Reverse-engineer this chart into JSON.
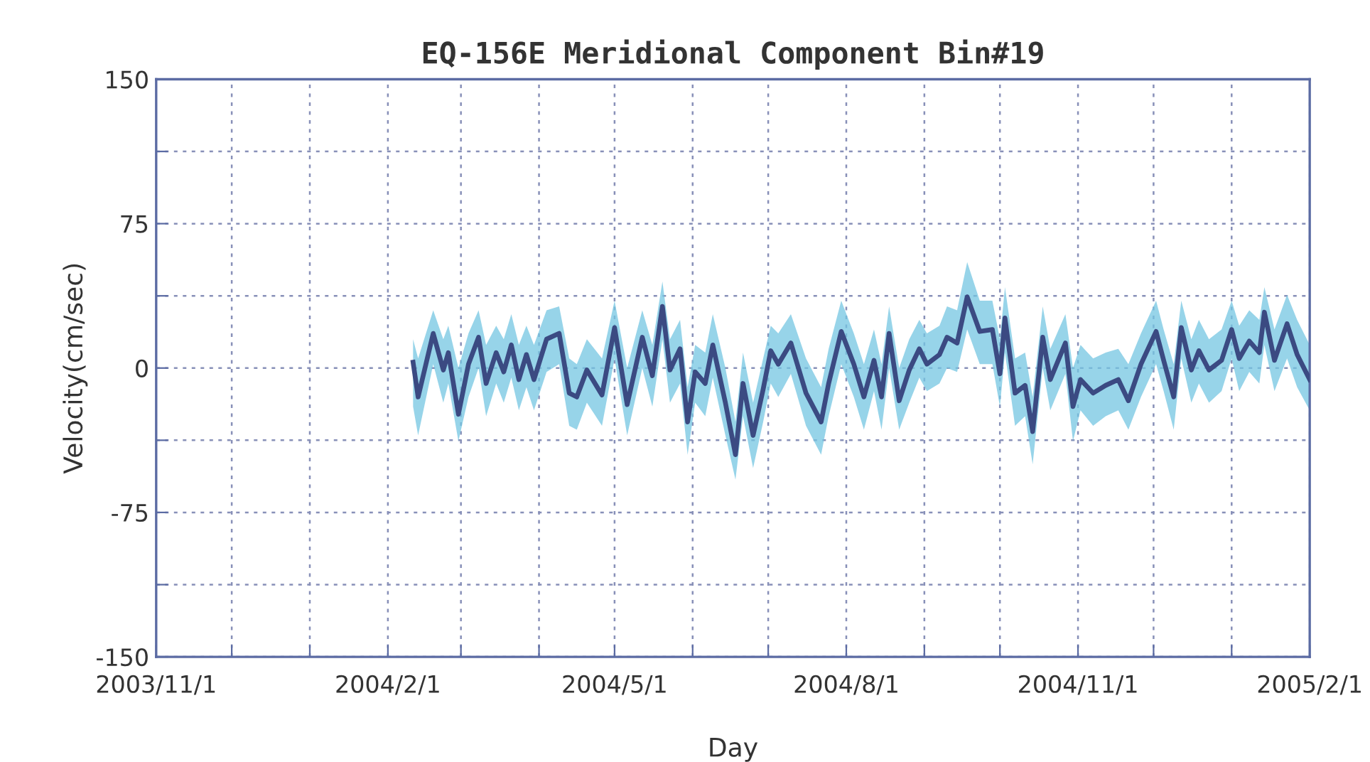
{
  "chart_data": {
    "type": "line",
    "title": "EQ-156E Meridional Component Bin#19",
    "xlabel": "Day",
    "ylabel": "Velocity(cm/sec)",
    "x": [
      "2004-02-11",
      "2004-02-13",
      "2004-02-19",
      "2004-02-23",
      "2004-02-25",
      "2004-02-29",
      "2004-03-04",
      "2004-03-08",
      "2004-03-11",
      "2004-03-15",
      "2004-03-18",
      "2004-03-21",
      "2004-03-24",
      "2004-03-27",
      "2004-03-30",
      "2004-04-04",
      "2004-04-09",
      "2004-04-13",
      "2004-04-16",
      "2004-04-20",
      "2004-04-26",
      "2004-05-01",
      "2004-05-06",
      "2004-05-12",
      "2004-05-16",
      "2004-05-20",
      "2004-05-23",
      "2004-05-27",
      "2004-05-30",
      "2004-06-02",
      "2004-06-06",
      "2004-06-09",
      "2004-06-14",
      "2004-06-18",
      "2004-06-21",
      "2004-06-25",
      "2004-06-29",
      "2004-07-02",
      "2004-07-05",
      "2004-07-10",
      "2004-07-16",
      "2004-07-22",
      "2004-07-25",
      "2004-07-30",
      "2004-08-04",
      "2004-08-08",
      "2004-08-12",
      "2004-08-15",
      "2004-08-18",
      "2004-08-22",
      "2004-08-26",
      "2004-08-30",
      "2004-09-02",
      "2004-09-07",
      "2004-09-10",
      "2004-09-14",
      "2004-09-18",
      "2004-09-23",
      "2004-09-28",
      "2004-10-01",
      "2004-10-03",
      "2004-10-07",
      "2004-10-11",
      "2004-10-14",
      "2004-10-18",
      "2004-10-21",
      "2004-10-27",
      "2004-10-30",
      "2004-11-02",
      "2004-11-07",
      "2004-11-12",
      "2004-11-17",
      "2004-11-21",
      "2004-11-26",
      "2004-12-02",
      "2004-12-05",
      "2004-12-09",
      "2004-12-12",
      "2004-12-16",
      "2004-12-19",
      "2004-12-23",
      "2004-12-28",
      "2005-01-01",
      "2005-01-04",
      "2005-01-08",
      "2005-01-12",
      "2005-01-14",
      "2005-01-18",
      "2005-01-23",
      "2005-01-27",
      "2005-02-01"
    ],
    "series": [
      {
        "color": "#3b4a82",
        "values": [
          3,
          -15,
          18,
          -1,
          8,
          -24,
          2,
          16,
          -8,
          8,
          -2,
          12,
          -6,
          7,
          -6,
          15,
          18,
          -13,
          -15,
          -1,
          -14,
          21,
          -19,
          16,
          -4,
          32,
          -1,
          10,
          -28,
          -2,
          -8,
          12,
          -18,
          -45,
          -8,
          -35,
          -11,
          9,
          2,
          13,
          -13,
          -28,
          -8,
          19,
          2,
          -15,
          4,
          -15,
          18,
          -17,
          -1,
          10,
          2,
          7,
          16,
          13,
          37,
          19,
          20,
          -3,
          26,
          -13,
          -9,
          -33,
          16,
          -6,
          13,
          -20,
          -6,
          -13,
          -9,
          -6,
          -17,
          2,
          19,
          4,
          -15,
          21,
          -1,
          9,
          -1,
          4,
          20,
          5,
          14,
          8,
          29,
          4,
          23,
          7,
          -6
        ],
        "upper": [
          15,
          5,
          30,
          15,
          22,
          0,
          18,
          30,
          12,
          22,
          15,
          28,
          12,
          22,
          12,
          30,
          32,
          5,
          2,
          15,
          5,
          35,
          0,
          30,
          12,
          45,
          15,
          25,
          -10,
          12,
          8,
          28,
          0,
          -28,
          8,
          -18,
          5,
          22,
          18,
          28,
          5,
          -10,
          10,
          35,
          18,
          2,
          20,
          2,
          32,
          0,
          15,
          25,
          18,
          22,
          32,
          30,
          55,
          35,
          35,
          15,
          42,
          5,
          8,
          -15,
          32,
          10,
          28,
          0,
          12,
          5,
          8,
          10,
          2,
          18,
          35,
          20,
          2,
          35,
          15,
          25,
          15,
          20,
          35,
          22,
          30,
          25,
          42,
          20,
          38,
          25,
          12
        ],
        "lower": [
          -20,
          -35,
          2,
          -18,
          -8,
          -38,
          -15,
          0,
          -25,
          -8,
          -18,
          -5,
          -22,
          -10,
          -22,
          -2,
          2,
          -30,
          -32,
          -18,
          -30,
          5,
          -35,
          0,
          -20,
          15,
          -18,
          -8,
          -45,
          -18,
          -25,
          -5,
          -35,
          -58,
          -25,
          -52,
          -28,
          -8,
          -15,
          -3,
          -30,
          -45,
          -25,
          2,
          -15,
          -32,
          -12,
          -32,
          0,
          -32,
          -18,
          -5,
          -12,
          -8,
          0,
          -2,
          20,
          2,
          2,
          -20,
          8,
          -30,
          -25,
          -50,
          0,
          -22,
          -3,
          -38,
          -22,
          -30,
          -25,
          -22,
          -32,
          -15,
          2,
          -12,
          -32,
          5,
          -18,
          -8,
          -18,
          -12,
          5,
          -12,
          -2,
          -8,
          12,
          -12,
          5,
          -10,
          -22
        ]
      }
    ],
    "xlim": [
      "2003-11-01",
      "2005-02-01"
    ],
    "xticks": [
      {
        "value": "2003-11-01",
        "label": "2003/11/1"
      },
      {
        "value": "2003-12-01",
        "label": null
      },
      {
        "value": "2004-01-01",
        "label": null
      },
      {
        "value": "2004-02-01",
        "label": "2004/2/1"
      },
      {
        "value": "2004-03-01",
        "label": null
      },
      {
        "value": "2004-04-01",
        "label": null
      },
      {
        "value": "2004-05-01",
        "label": "2004/5/1"
      },
      {
        "value": "2004-06-01",
        "label": null
      },
      {
        "value": "2004-07-01",
        "label": null
      },
      {
        "value": "2004-08-01",
        "label": "2004/8/1"
      },
      {
        "value": "2004-09-01",
        "label": null
      },
      {
        "value": "2004-10-01",
        "label": null
      },
      {
        "value": "2004-11-01",
        "label": "2004/11/1"
      },
      {
        "value": "2004-12-01",
        "label": null
      },
      {
        "value": "2005-01-01",
        "label": null
      },
      {
        "value": "2005-02-01",
        "label": "2005/2/1"
      }
    ],
    "ylim": [
      -150,
      150
    ],
    "yticks": [
      -150,
      {
        "value": -112.5,
        "label": null
      },
      -75,
      {
        "value": -37.5,
        "label": null
      },
      0,
      {
        "value": 37.5,
        "label": null
      },
      75,
      {
        "value": 112.5,
        "label": null
      },
      150
    ],
    "grid": true,
    "marker": "none",
    "line_style": "solid"
  }
}
